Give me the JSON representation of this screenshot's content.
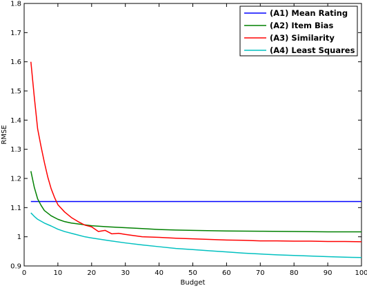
{
  "chart_data": {
    "type": "line",
    "title": "",
    "xlabel": "Budget",
    "ylabel": "RMSE",
    "xlim": [
      0,
      100
    ],
    "ylim": [
      0.9,
      1.8
    ],
    "xticks": [
      0,
      10,
      20,
      30,
      40,
      50,
      60,
      70,
      80,
      90,
      100
    ],
    "yticks": [
      0.9,
      1,
      1.1,
      1.2,
      1.3,
      1.4,
      1.5,
      1.6,
      1.7,
      1.8
    ],
    "ytick_labels": [
      "0.9",
      "1",
      "1.1",
      "1.2",
      "1.3",
      "1.4",
      "1.5",
      "1.6",
      "1.7",
      "1.8"
    ],
    "grid": false,
    "legend_position": "top-right",
    "series": [
      {
        "name": "(A1) Mean Rating",
        "color": "#0000ff",
        "x": [
          2,
          10,
          20,
          30,
          40,
          50,
          60,
          70,
          80,
          90,
          100
        ],
        "y": [
          1.121,
          1.121,
          1.121,
          1.121,
          1.121,
          1.121,
          1.121,
          1.121,
          1.121,
          1.121,
          1.121
        ]
      },
      {
        "name": "(A2) Item Bias",
        "color": "#008000",
        "x": [
          2,
          3,
          4,
          5,
          6,
          8,
          10,
          12,
          14,
          16,
          18,
          20,
          25,
          30,
          35,
          40,
          45,
          50,
          60,
          70,
          80,
          90,
          100
        ],
        "y": [
          1.225,
          1.17,
          1.13,
          1.108,
          1.09,
          1.072,
          1.06,
          1.052,
          1.047,
          1.044,
          1.041,
          1.038,
          1.034,
          1.031,
          1.028,
          1.025,
          1.023,
          1.022,
          1.02,
          1.019,
          1.018,
          1.017,
          1.017
        ]
      },
      {
        "name": "(A3) Similarity",
        "color": "#ff0000",
        "x": [
          2,
          3,
          4,
          5,
          6,
          7,
          8,
          9,
          10,
          12,
          14,
          16,
          18,
          20,
          22,
          24,
          26,
          28,
          30,
          35,
          40,
          45,
          50,
          55,
          60,
          65,
          70,
          75,
          80,
          85,
          90,
          95,
          100
        ],
        "y": [
          1.6,
          1.48,
          1.37,
          1.31,
          1.255,
          1.205,
          1.165,
          1.135,
          1.11,
          1.085,
          1.066,
          1.052,
          1.04,
          1.034,
          1.018,
          1.022,
          1.01,
          1.012,
          1.008,
          1.0,
          0.998,
          0.995,
          0.993,
          0.991,
          0.989,
          0.988,
          0.986,
          0.986,
          0.985,
          0.985,
          0.984,
          0.984,
          0.983
        ]
      },
      {
        "name": "(A4) Least Squares",
        "color": "#00c0c0",
        "x": [
          2,
          3,
          4,
          6,
          8,
          10,
          12,
          15,
          18,
          20,
          25,
          30,
          35,
          40,
          45,
          50,
          55,
          60,
          65,
          70,
          75,
          80,
          85,
          90,
          95,
          100
        ],
        "y": [
          1.082,
          1.07,
          1.06,
          1.047,
          1.037,
          1.026,
          1.018,
          1.009,
          1.0,
          0.996,
          0.987,
          0.979,
          0.972,
          0.966,
          0.96,
          0.956,
          0.952,
          0.948,
          0.944,
          0.941,
          0.938,
          0.936,
          0.934,
          0.932,
          0.93,
          0.929
        ]
      }
    ]
  }
}
